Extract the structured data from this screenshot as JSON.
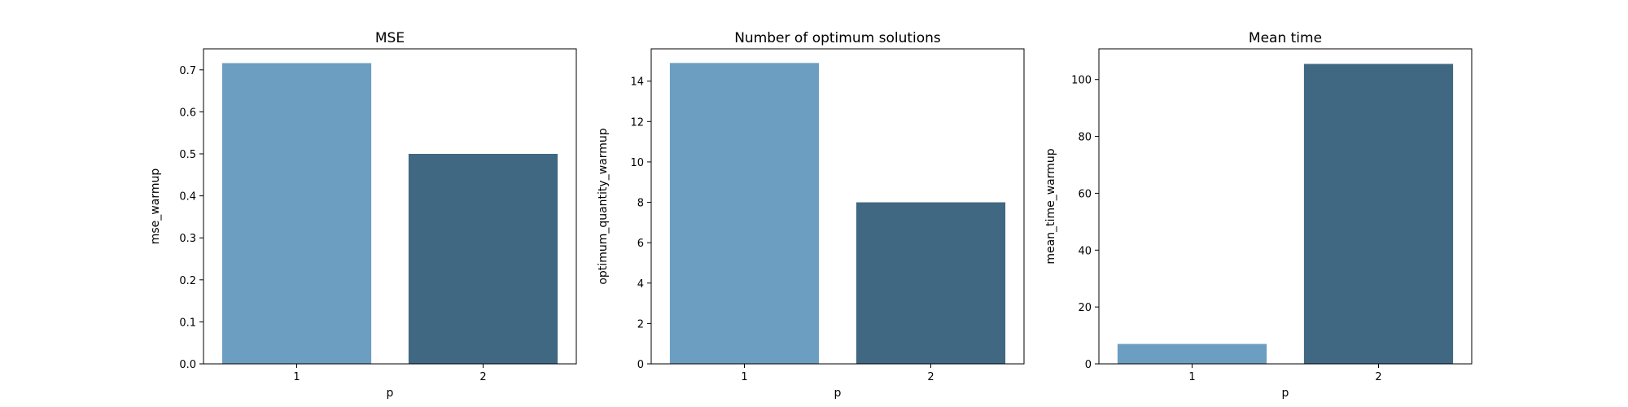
{
  "chart_data": [
    {
      "type": "bar",
      "title": "MSE",
      "xlabel": "p",
      "ylabel": "mse_warmup",
      "categories": [
        "1",
        "2"
      ],
      "values": [
        0.716,
        0.5
      ],
      "ylim": [
        0,
        0.75
      ],
      "yticks": [
        "0.0",
        "0.1",
        "0.2",
        "0.3",
        "0.4",
        "0.5",
        "0.6",
        "0.7"
      ],
      "ytick_values": [
        0,
        0.1,
        0.2,
        0.3,
        0.4,
        0.5,
        0.6,
        0.7
      ],
      "colors": [
        "#6b9ec0",
        "#416883"
      ],
      "grid": false
    },
    {
      "type": "bar",
      "title": "Number of optimum solutions",
      "xlabel": "p",
      "ylabel": "optimum_quantity_warmup",
      "categories": [
        "1",
        "2"
      ],
      "values": [
        14.9,
        8.0
      ],
      "ylim": [
        0,
        15.6
      ],
      "yticks": [
        "0",
        "2",
        "4",
        "6",
        "8",
        "10",
        "12",
        "14"
      ],
      "ytick_values": [
        0,
        2,
        4,
        6,
        8,
        10,
        12,
        14
      ],
      "colors": [
        "#6b9ec0",
        "#416883"
      ],
      "grid": false
    },
    {
      "type": "bar",
      "title": "Mean time",
      "xlabel": "p",
      "ylabel": "mean_time_warmup",
      "categories": [
        "1",
        "2"
      ],
      "values": [
        7.0,
        105.5
      ],
      "ylim": [
        0,
        110.8
      ],
      "yticks": [
        "0",
        "20",
        "40",
        "60",
        "80",
        "100"
      ],
      "ytick_values": [
        0,
        20,
        40,
        60,
        80,
        100
      ],
      "colors": [
        "#6b9ec0",
        "#416883"
      ],
      "grid": false
    }
  ]
}
